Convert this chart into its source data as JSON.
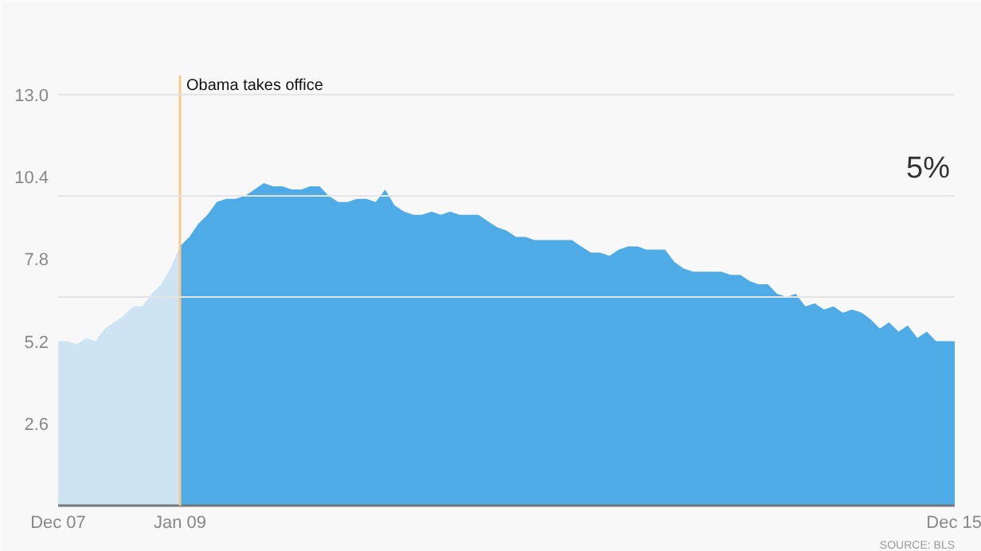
{
  "chart_data": {
    "type": "area",
    "ylim": [
      0,
      13.6
    ],
    "yticks": [
      2.6,
      5.2,
      7.8,
      10.4,
      {
        "value": 13.0,
        "label": "13.0"
      }
    ],
    "xlim": [
      "2007-12",
      "2015-12"
    ],
    "xticks": [
      {
        "value": "2007-12",
        "label": "Dec 07"
      },
      {
        "value": "2009-01",
        "label": "Jan 09"
      },
      {
        "value": "2015-12",
        "label": "Dec 15"
      }
    ],
    "grid": false,
    "series": [
      {
        "color": "#cfe4f3",
        "x": [
          "2007-12",
          "2008-01",
          "2008-02",
          "2008-03",
          "2008-04",
          "2008-05",
          "2008-06",
          "2008-07",
          "2008-08",
          "2008-09",
          "2008-10",
          "2008-11",
          "2008-12",
          "2009-01"
        ],
        "values": [
          5.2,
          5.2,
          5.1,
          5.3,
          5.2,
          5.6,
          5.8,
          6.0,
          6.3,
          6.3,
          6.7,
          7.0,
          7.5,
          8.2
        ]
      },
      {
        "color": "#4eabe6",
        "x": [
          "2009-01",
          "2009-02",
          "2009-03",
          "2009-04",
          "2009-05",
          "2009-06",
          "2009-07",
          "2009-08",
          "2009-09",
          "2009-10",
          "2009-11",
          "2009-12",
          "2010-01",
          "2010-02",
          "2010-03",
          "2010-04",
          "2010-05",
          "2010-06",
          "2010-07",
          "2010-08",
          "2010-09",
          "2010-10",
          "2010-11",
          "2010-12",
          "2011-01",
          "2011-02",
          "2011-03",
          "2011-04",
          "2011-05",
          "2011-06",
          "2011-07",
          "2011-08",
          "2011-09",
          "2011-10",
          "2011-11",
          "2011-12",
          "2012-01",
          "2012-02",
          "2012-03",
          "2012-04",
          "2012-05",
          "2012-06",
          "2012-07",
          "2012-08",
          "2012-09",
          "2012-10",
          "2012-11",
          "2012-12",
          "2013-01",
          "2013-02",
          "2013-03",
          "2013-04",
          "2013-05",
          "2013-06",
          "2013-07",
          "2013-08",
          "2013-09",
          "2013-10",
          "2013-11",
          "2013-12",
          "2014-01",
          "2014-02",
          "2014-03",
          "2014-04",
          "2014-05",
          "2014-06",
          "2014-07",
          "2014-08",
          "2014-09",
          "2014-10",
          "2014-11",
          "2014-12",
          "2015-01",
          "2015-02",
          "2015-03",
          "2015-04",
          "2015-05",
          "2015-06",
          "2015-07",
          "2015-08",
          "2015-09",
          "2015-10",
          "2015-11",
          "2015-12"
        ],
        "values": [
          8.2,
          8.5,
          8.9,
          9.2,
          9.6,
          9.7,
          9.7,
          9.8,
          10.0,
          10.2,
          10.1,
          10.1,
          10.0,
          10.0,
          10.1,
          10.1,
          9.8,
          9.6,
          9.6,
          9.7,
          9.7,
          9.6,
          10.0,
          9.5,
          9.3,
          9.2,
          9.2,
          9.3,
          9.2,
          9.3,
          9.2,
          9.2,
          9.2,
          9.0,
          8.8,
          8.7,
          8.5,
          8.5,
          8.4,
          8.4,
          8.4,
          8.4,
          8.4,
          8.2,
          8.0,
          8.0,
          7.9,
          8.1,
          8.2,
          8.2,
          8.1,
          8.1,
          8.1,
          7.7,
          7.5,
          7.4,
          7.4,
          7.4,
          7.4,
          7.3,
          7.3,
          7.1,
          7.0,
          7.0,
          6.7,
          6.6,
          6.7,
          6.3,
          6.4,
          6.2,
          6.3,
          6.1,
          6.2,
          6.1,
          5.9,
          5.6,
          5.8,
          5.5,
          5.7,
          5.3,
          5.5,
          5.2,
          5.2,
          5.2
        ]
      }
    ],
    "ref_lines": [
      {
        "axis": "x",
        "value": "2009-01",
        "label": "Obama takes office",
        "color": "#f7c98a"
      },
      {
        "axis": "y",
        "value": 13.0,
        "label": null,
        "color": "#e4e4e4"
      },
      {
        "axis": "y",
        "value": 9.8,
        "label": null,
        "color": "#e4e4e4"
      },
      {
        "axis": "y",
        "value": 6.6,
        "label": null,
        "color": "#e4e4e4"
      }
    ],
    "annotations": [
      "5%",
      "SOURCE: BLS"
    ]
  }
}
